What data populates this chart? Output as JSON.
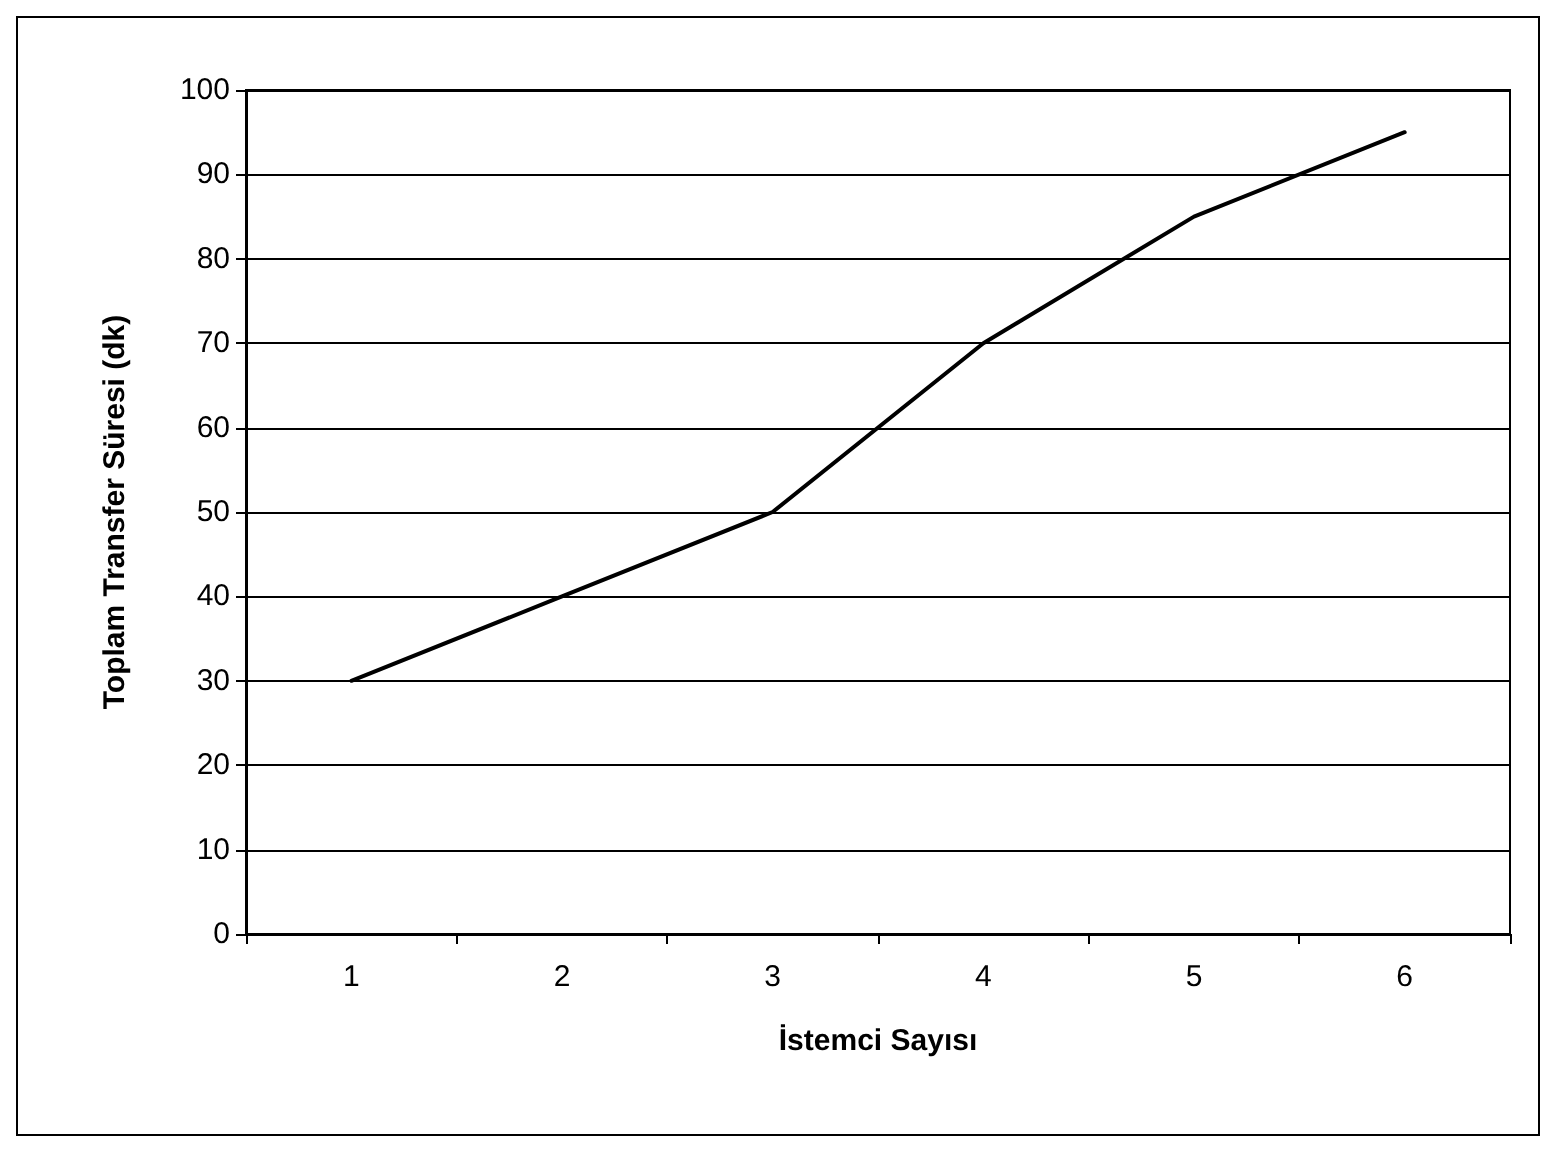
{
  "chart_data": {
    "type": "line",
    "xlabel": "İstemci Sayısı",
    "ylabel": "Toplam Transfer Süresi (dk)",
    "categories": [
      "1",
      "2",
      "3",
      "4",
      "5",
      "6"
    ],
    "series": [
      {
        "color": "#000000",
        "values": [
          30,
          40,
          50,
          70,
          85,
          95
        ]
      }
    ],
    "ylim": [
      0,
      100
    ],
    "yticks": [
      0,
      10,
      20,
      30,
      40,
      50,
      60,
      70,
      80,
      90,
      100
    ],
    "grid": "y",
    "marker": "none",
    "line_style": "solid"
  }
}
